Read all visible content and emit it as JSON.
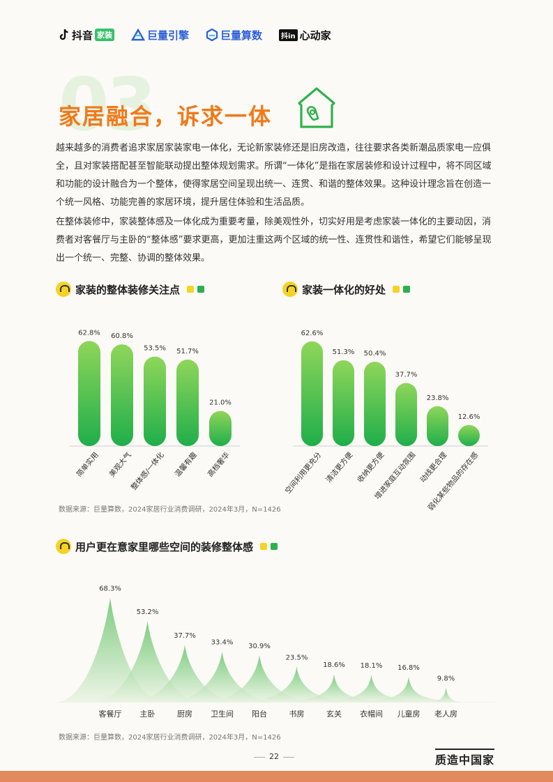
{
  "header": {
    "logos": [
      {
        "name": "抖音",
        "badge": "家装"
      },
      {
        "name": "巨量引擎"
      },
      {
        "name": "巨量算数"
      },
      {
        "name": "心动家",
        "badge": "抖in"
      }
    ]
  },
  "section": {
    "number": "03",
    "title": "家居融合，诉求一体"
  },
  "paragraphs": [
    "越来越多的消费者追求家居家装家电一体化，无论新家装修还是旧房改造，往往要求各类新潮品质家电一应俱全，且对家装搭配甚至智能联动提出整体规划需求。所谓“一体化”是指在家居装修和设计过程中，将不同区域和功能的设计融合为一个整体，使得家居空间呈现出统一、连贯、和谐的整体效果。这种设计理念旨在创造一个统一风格、功能完善的家居环境，提升居住体验和生活品质。",
    "在整体装修中，家装整体感及一体化成为重要考量，除美观性外，切实好用是考虑家装一体化的主要动因，消费者对客餐厅与主卧的“整体感”要求更高，更加注重这两个区域的统一性、连贯性和谐性，希望它们能够呈现出一个统一、完整、协调的整体效果。"
  ],
  "colors": {
    "accent": "#f07a1a",
    "bar_top": "#8fd65a",
    "bar_bottom": "#1fae4a",
    "peak_top": "#4cba52",
    "peak_bottom": "#eaf3e2"
  },
  "chart_data": [
    {
      "type": "bar",
      "title": "家装的整体装修关注点",
      "categories": [
        "简单实用",
        "美观大气",
        "整体感/一体化",
        "温馨有趣",
        "高档奢华"
      ],
      "values": [
        62.8,
        60.8,
        53.5,
        51.7,
        21.0
      ],
      "value_labels": [
        "62.8%",
        "60.8%",
        "53.5%",
        "51.7%",
        "21.0%"
      ],
      "source": "数据来源：巨量算数，2024家居行业消费调研，2024年3月，N=1426"
    },
    {
      "type": "bar",
      "title": "家装一体化的好处",
      "categories": [
        "空间利用更充分",
        "清洁更方便",
        "收纳更方便",
        "增进家庭互动氛围",
        "动线更合理",
        "弱化某些物品的存在感"
      ],
      "values": [
        62.6,
        51.3,
        50.4,
        37.7,
        23.8,
        12.6
      ],
      "value_labels": [
        "62.6%",
        "51.3%",
        "50.4%",
        "37.7%",
        "23.8%",
        "12.6%"
      ]
    },
    {
      "type": "area",
      "title": "用户更在意家里哪些空间的装修整体感",
      "categories": [
        "客餐厅",
        "主卧",
        "厨房",
        "卫生间",
        "阳台",
        "书房",
        "玄关",
        "衣帽间",
        "儿童房",
        "老人房"
      ],
      "values": [
        68.3,
        53.2,
        37.7,
        33.4,
        30.9,
        23.5,
        18.6,
        18.1,
        16.8,
        9.8
      ],
      "value_labels": [
        "68.3%",
        "53.2%",
        "37.7%",
        "33.4%",
        "30.9%",
        "23.5%",
        "18.6%",
        "18.1%",
        "16.8%",
        "9.8%"
      ],
      "source": "数据来源：巨量算数，2024家居行业消费调研，2024年3月，N=1426"
    }
  ],
  "footer": {
    "page": "22",
    "brand": "质造中国家"
  }
}
